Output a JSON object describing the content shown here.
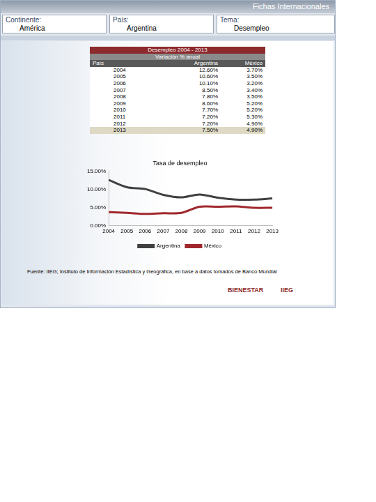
{
  "header": {
    "brand": "Fichas Internacionales",
    "fields": [
      {
        "label": "Continente:",
        "value": "América"
      },
      {
        "label": "País:",
        "value": "Argentina"
      },
      {
        "label": "Tema:",
        "value": "Desempleo"
      }
    ]
  },
  "table": {
    "title": "Desempleo 2004 - 2013",
    "subtitle": "Variación % anual",
    "columns": [
      "País",
      "Argentina",
      "México"
    ],
    "rows": [
      [
        "2004",
        "12.60%",
        "3.70%"
      ],
      [
        "2005",
        "10.60%",
        "3.50%"
      ],
      [
        "2006",
        "10.10%",
        "3.20%"
      ],
      [
        "2007",
        "8.50%",
        "3.40%"
      ],
      [
        "2008",
        "7.80%",
        "3.50%"
      ],
      [
        "2009",
        "8.60%",
        "5.20%"
      ],
      [
        "2010",
        "7.70%",
        "5.20%"
      ],
      [
        "2011",
        "7.20%",
        "5.30%"
      ],
      [
        "2012",
        "7.20%",
        "4.90%"
      ],
      [
        "2013",
        "7.50%",
        "4.90%"
      ]
    ]
  },
  "chart_data": {
    "type": "line",
    "title": "Tasa de desempleo",
    "categories": [
      "2004",
      "2005",
      "2006",
      "2007",
      "2008",
      "2009",
      "2010",
      "2011",
      "2012",
      "2013"
    ],
    "series": [
      {
        "name": "Argentina",
        "color": "#404040",
        "values": [
          12.6,
          10.6,
          10.1,
          8.5,
          7.8,
          8.6,
          7.7,
          7.2,
          7.2,
          7.5
        ]
      },
      {
        "name": "México",
        "color": "#a0282d",
        "values": [
          3.7,
          3.5,
          3.2,
          3.4,
          3.5,
          5.2,
          5.2,
          5.3,
          4.9,
          4.9
        ]
      }
    ],
    "ylim": [
      0,
      15
    ],
    "yticks": [
      {
        "value": 0,
        "label": "0.00%"
      },
      {
        "value": 5,
        "label": "5.00%"
      },
      {
        "value": 10,
        "label": "10.00%"
      },
      {
        "value": 15,
        "label": "15.00%"
      }
    ],
    "grid": false,
    "legend": "bottom"
  },
  "source": "Fuente: IIEG; Instituto de Información Estadística y Geográfica, en base a datos tomados de  Banco Mundial",
  "logos": [
    "BIENESTAR",
    "IIEG"
  ]
}
